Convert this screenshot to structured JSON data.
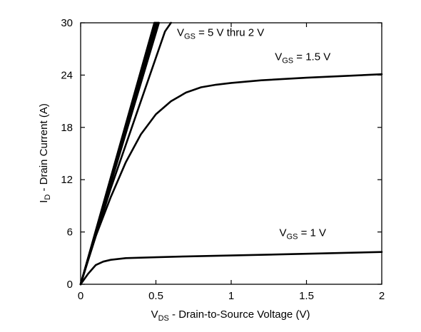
{
  "chart_data": {
    "type": "line",
    "xlabel": {
      "main": "V",
      "sub": "DS",
      "rest": " - Drain-to-Source Voltage (V)"
    },
    "ylabel": {
      "main": "I",
      "sub": "D",
      "rest": " - Drain Current (A)"
    },
    "xlim": [
      0,
      2
    ],
    "ylim": [
      0,
      30
    ],
    "xticks": [
      0,
      0.5,
      1,
      1.5,
      2
    ],
    "xtick_labels": [
      "0",
      "0.5",
      "1",
      "1.5",
      "2"
    ],
    "yticks": [
      0,
      6,
      12,
      18,
      24,
      30
    ],
    "ytick_labels": [
      "0",
      "6",
      "12",
      "18",
      "24",
      "30"
    ],
    "grid": false,
    "series": [
      {
        "x": [
          0,
          0.49
        ],
        "y": [
          0,
          30
        ]
      },
      {
        "x": [
          0,
          0.495
        ],
        "y": [
          0,
          30
        ]
      },
      {
        "x": [
          0,
          0.5
        ],
        "y": [
          0,
          30
        ]
      },
      {
        "x": [
          0,
          0.505
        ],
        "y": [
          0,
          30
        ]
      },
      {
        "x": [
          0,
          0.51
        ],
        "y": [
          0,
          30
        ]
      },
      {
        "x": [
          0,
          0.515
        ],
        "y": [
          0,
          30
        ]
      },
      {
        "x": [
          0,
          0.52
        ],
        "y": [
          0,
          30
        ]
      },
      {
        "x": [
          0,
          0.1,
          0.2,
          0.3,
          0.4,
          0.5,
          0.56,
          0.6
        ],
        "y": [
          0,
          5.5,
          11,
          16,
          21,
          26,
          29,
          30
        ]
      },
      {
        "x": [
          0,
          0.05,
          0.1,
          0.2,
          0.3,
          0.4,
          0.5,
          0.6,
          0.7,
          0.8,
          0.9,
          1.0,
          1.2,
          1.5,
          2.0
        ],
        "y": [
          0,
          2.8,
          5.5,
          10,
          14,
          17.2,
          19.5,
          21,
          22,
          22.6,
          22.9,
          23.1,
          23.4,
          23.7,
          24.1
        ]
      },
      {
        "x": [
          0,
          0.05,
          0.1,
          0.15,
          0.2,
          0.3,
          0.5,
          0.7,
          1.0,
          1.5,
          2.0
        ],
        "y": [
          0,
          1.2,
          2.2,
          2.6,
          2.8,
          3.0,
          3.1,
          3.2,
          3.3,
          3.5,
          3.7
        ]
      }
    ],
    "annotations": [
      {
        "main": "V",
        "sub": "GS",
        "rest": " = 5 V thru 2 V",
        "x": 0.64,
        "y": 28.5
      },
      {
        "main": "V",
        "sub": "GS",
        "rest": " = 1.5 V",
        "x": 1.29,
        "y": 25.7
      },
      {
        "main": "V",
        "sub": "GS",
        "rest": " = 1 V",
        "x": 1.32,
        "y": 5.5
      }
    ]
  }
}
